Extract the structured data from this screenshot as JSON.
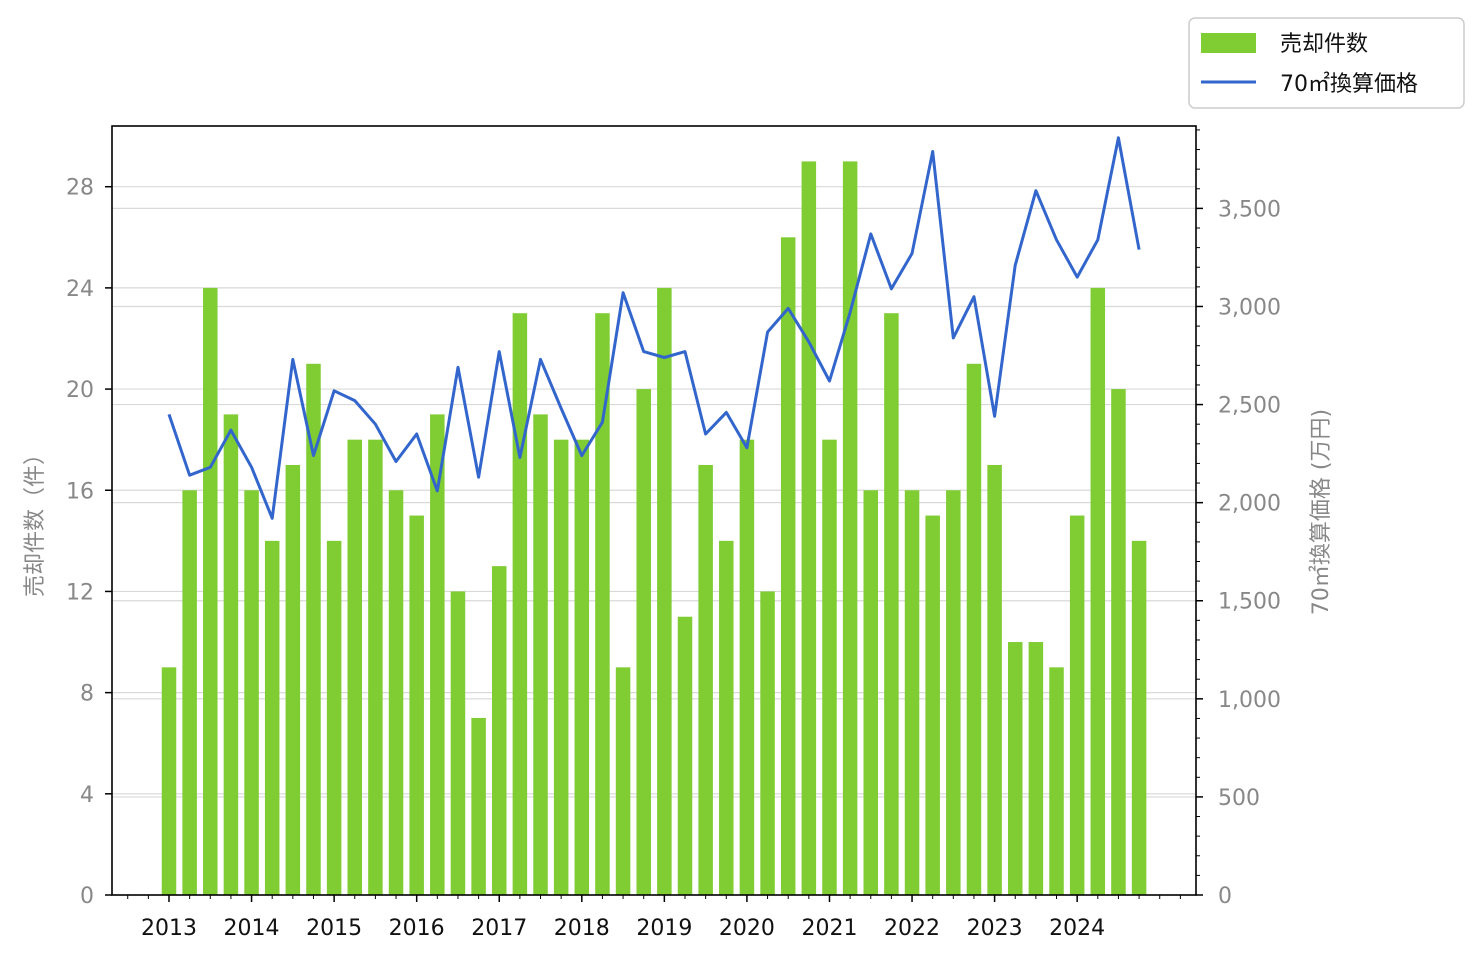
{
  "chart_data": {
    "type": "bar+line",
    "x_ticks": [
      "2013",
      "2014",
      "2015",
      "2016",
      "2017",
      "2018",
      "2019",
      "2020",
      "2021",
      "2022",
      "2023",
      "2024"
    ],
    "ylabel_left": "売却件数（件）",
    "ylabel_right": "70㎡換算価格 (万円)",
    "ylim_left": [
      0,
      30.4
    ],
    "ylim_right": [
      0,
      3920
    ],
    "yticks_left": [
      "0",
      "4",
      "8",
      "12",
      "16",
      "20",
      "24",
      "28"
    ],
    "yticks_right": [
      "0",
      "500",
      "1,000",
      "1,500",
      "2,000",
      "2,500",
      "3,000",
      "3,500"
    ],
    "grid": true,
    "legend_position": "top-right, outside plot",
    "series": [
      {
        "name": "売却件数",
        "type": "bar",
        "axis": "left",
        "color": "#7fcc33",
        "values": [
          9,
          16,
          24,
          19,
          16,
          14,
          17,
          21,
          14,
          18,
          18,
          16,
          15,
          19,
          12,
          7,
          13,
          23,
          19,
          18,
          18,
          23,
          9,
          20,
          24,
          11,
          17,
          14,
          18,
          12,
          26,
          29,
          18,
          29,
          16,
          23,
          16,
          15,
          16,
          21,
          17,
          10,
          10,
          9,
          15,
          24,
          20,
          14
        ]
      },
      {
        "name": "70㎡換算価格",
        "type": "line",
        "axis": "right",
        "color": "#3366cc",
        "values": [
          2450,
          2140,
          2180,
          2370,
          2180,
          1920,
          2730,
          2240,
          2570,
          2520,
          2400,
          2210,
          2350,
          2060,
          2690,
          2130,
          2770,
          2230,
          2730,
          2480,
          2240,
          2410,
          3070,
          2770,
          2740,
          2770,
          2350,
          2460,
          2280,
          2870,
          2990,
          2820,
          2620,
          2970,
          3370,
          3090,
          3270,
          3790,
          2840,
          3050,
          2440,
          3210,
          3590,
          3340,
          3150,
          3340,
          3860,
          3290
        ]
      }
    ]
  }
}
